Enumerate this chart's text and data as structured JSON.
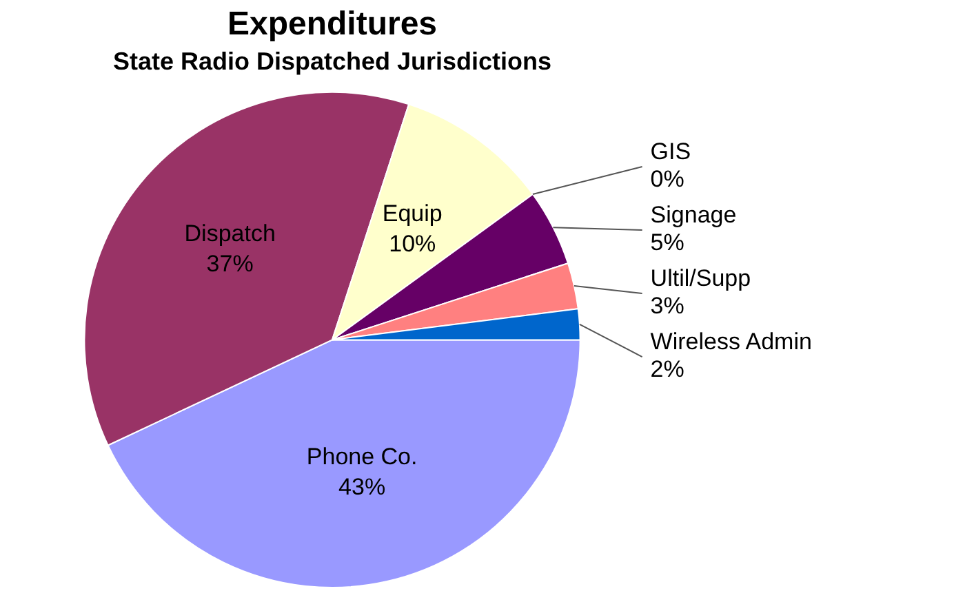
{
  "chart_data": {
    "type": "pie",
    "title": "Expenditures",
    "subtitle": "State Radio Dispatched Jurisdictions",
    "categories": [
      "Phone Co.",
      "Dispatch",
      "Equip",
      "GIS",
      "Signage",
      "Ultil/Supp",
      "Wireless Admin"
    ],
    "values": [
      43,
      37,
      10,
      0,
      5,
      3,
      2
    ],
    "value_labels": [
      "43%",
      "37%",
      "10%",
      "0%",
      "5%",
      "3%",
      "2%"
    ],
    "colors": [
      "#9999ff",
      "#993366",
      "#ffffcc",
      "#ccffff",
      "#660066",
      "#ff8080",
      "#0066cc"
    ],
    "legend": false
  }
}
